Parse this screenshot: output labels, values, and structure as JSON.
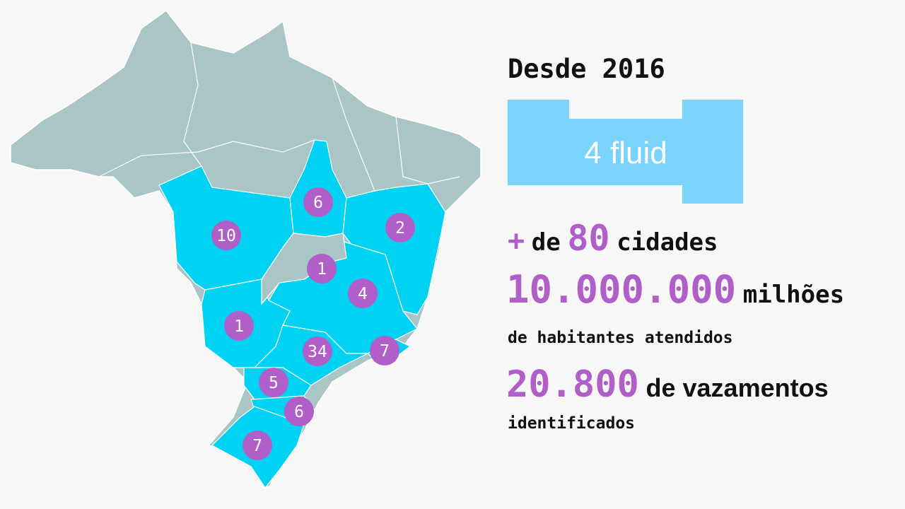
{
  "colors": {
    "background": "#f6f7f6",
    "country_gray": "#a9c5c5",
    "served_states_cyan": "#00d2f3",
    "marker_purple": "#b05ec8",
    "logo_blue": "#79d3fb",
    "highlight_purple": "#b05ec8"
  },
  "map": {
    "markers": [
      {
        "region": "Mato Grosso",
        "value": "10"
      },
      {
        "region": "Tocantins",
        "value": "6"
      },
      {
        "region": "Bahia",
        "value": "2"
      },
      {
        "region": "Goiás",
        "value": "1"
      },
      {
        "region": "Minas Gerais",
        "value": "4"
      },
      {
        "region": "Mato Grosso do Sul",
        "value": "1"
      },
      {
        "region": "São Paulo",
        "value": "34"
      },
      {
        "region": "Rio de Janeiro",
        "value": "7"
      },
      {
        "region": "Paraná",
        "value": "5"
      },
      {
        "region": "Santa Catarina",
        "value": "6"
      },
      {
        "region": "Rio Grande do Sul",
        "value": "7"
      }
    ]
  },
  "info": {
    "since": "Desde 2016",
    "logo_text": "4 fluid",
    "cities": {
      "prefix": "+",
      "de": "de",
      "number": "80",
      "suffix": "cidades"
    },
    "population": {
      "number": "10.000.000",
      "unit": "milhões",
      "caption": "de habitantes atendidos"
    },
    "leaks": {
      "number": "20.800",
      "suffix": "de vazamentos",
      "caption": "identificados"
    }
  }
}
